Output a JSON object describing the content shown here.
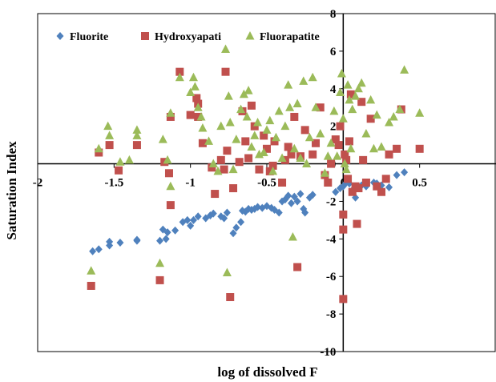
{
  "chart_data": {
    "type": "scatter",
    "xlabel": "log of dissolved F",
    "ylabel": "Saturation Index",
    "xlim": [
      -2,
      1
    ],
    "ylim": [
      -10,
      8
    ],
    "x_ticks": [
      -2,
      -1.5,
      -1,
      -0.5,
      0,
      0.5
    ],
    "x_tick_labels": [
      "-2",
      "-1.5",
      "-1",
      "-0.5",
      "0",
      "0.5"
    ],
    "y_ticks": [
      -10,
      -8,
      -6,
      -4,
      -2,
      0,
      2,
      4,
      6,
      8
    ],
    "y_tick_labels": [
      "-10",
      "-8",
      "-6",
      "-4",
      "-2",
      "0",
      "2",
      "4",
      "6",
      "8"
    ],
    "grid": false,
    "legend_position": "top-left",
    "series": [
      {
        "name": "Fluorite",
        "marker": "diamond",
        "color": "#4f81bd",
        "points": [
          [
            -1.64,
            -4.66
          ],
          [
            -1.6,
            -4.55
          ],
          [
            -1.53,
            -4.35
          ],
          [
            -1.53,
            -4.15
          ],
          [
            -1.46,
            -4.2
          ],
          [
            -1.35,
            -4.1
          ],
          [
            -1.35,
            -4.05
          ],
          [
            -1.2,
            -4.1
          ],
          [
            -1.16,
            -4.0
          ],
          [
            -1.18,
            -3.5
          ],
          [
            -1.15,
            -3.65
          ],
          [
            -1.1,
            -3.55
          ],
          [
            -1.05,
            -3.1
          ],
          [
            -1.02,
            -3.0
          ],
          [
            -1.0,
            -3.3
          ],
          [
            -0.98,
            -3.0
          ],
          [
            -0.95,
            -2.8
          ],
          [
            -0.9,
            -2.9
          ],
          [
            -0.87,
            -2.75
          ],
          [
            -0.85,
            -2.65
          ],
          [
            -0.8,
            -2.8
          ],
          [
            -0.78,
            -2.9
          ],
          [
            -0.76,
            -2.6
          ],
          [
            -0.72,
            -3.7
          ],
          [
            -0.7,
            -3.4
          ],
          [
            -0.67,
            -3.1
          ],
          [
            -0.66,
            -2.5
          ],
          [
            -0.64,
            -2.55
          ],
          [
            -0.62,
            -2.4
          ],
          [
            -0.6,
            -2.45
          ],
          [
            -0.58,
            -2.4
          ],
          [
            -0.56,
            -2.3
          ],
          [
            -0.53,
            -2.35
          ],
          [
            -0.5,
            -2.25
          ],
          [
            -0.47,
            -2.35
          ],
          [
            -0.45,
            -2.45
          ],
          [
            -0.42,
            -2.6
          ],
          [
            -0.4,
            -2.0
          ],
          [
            -0.38,
            -1.9
          ],
          [
            -0.36,
            -1.7
          ],
          [
            -0.34,
            -2.1
          ],
          [
            -0.32,
            -1.75
          ],
          [
            -0.3,
            -2.0
          ],
          [
            -0.28,
            -1.6
          ],
          [
            -0.26,
            -2.4
          ],
          [
            -0.25,
            -2.6
          ],
          [
            -0.22,
            -1.8
          ],
          [
            -0.2,
            -1.65
          ],
          [
            -0.05,
            -1.5
          ],
          [
            -0.02,
            -1.3
          ],
          [
            0.0,
            -1.2
          ],
          [
            0.02,
            -1.0
          ],
          [
            0.04,
            -1.05
          ],
          [
            0.06,
            -1.4
          ],
          [
            0.08,
            -1.8
          ],
          [
            0.1,
            -1.3
          ],
          [
            0.12,
            -1.15
          ],
          [
            0.15,
            -1.2
          ],
          [
            0.2,
            -1.0
          ],
          [
            0.22,
            -1.05
          ],
          [
            0.25,
            -1.15
          ],
          [
            0.3,
            -1.25
          ],
          [
            0.35,
            -0.6
          ],
          [
            0.4,
            -0.45
          ]
        ]
      },
      {
        "name": "Hydroxyapati",
        "marker": "square",
        "color": "#c0504d",
        "points": [
          [
            -1.65,
            -6.5
          ],
          [
            -1.6,
            0.6
          ],
          [
            -1.53,
            1.0
          ],
          [
            -1.47,
            -0.35
          ],
          [
            -1.35,
            1.0
          ],
          [
            -1.2,
            -6.2
          ],
          [
            -1.17,
            0.1
          ],
          [
            -1.14,
            -0.5
          ],
          [
            -1.13,
            -2.2
          ],
          [
            -1.13,
            2.5
          ],
          [
            -1.07,
            4.9
          ],
          [
            -1.0,
            2.6
          ],
          [
            -0.96,
            3.5
          ],
          [
            -0.95,
            3.2
          ],
          [
            -0.95,
            2.5
          ],
          [
            -0.92,
            1.1
          ],
          [
            -0.86,
            -0.2
          ],
          [
            -0.84,
            -1.6
          ],
          [
            -0.8,
            0.2
          ],
          [
            -0.78,
            -0.3
          ],
          [
            -0.77,
            4.9
          ],
          [
            -0.76,
            0.7
          ],
          [
            -0.74,
            -7.1
          ],
          [
            -0.72,
            -1.3
          ],
          [
            -0.68,
            0.1
          ],
          [
            -0.66,
            2.8
          ],
          [
            -0.64,
            1.2
          ],
          [
            -0.62,
            0.3
          ],
          [
            -0.6,
            3.1
          ],
          [
            -0.58,
            2.0
          ],
          [
            -0.55,
            -0.3
          ],
          [
            -0.52,
            1.5
          ],
          [
            -0.5,
            0.8
          ],
          [
            -0.48,
            -0.4
          ],
          [
            -0.46,
            -0.1
          ],
          [
            -0.45,
            1.2
          ],
          [
            -0.4,
            -1.0
          ],
          [
            -0.38,
            0.2
          ],
          [
            -0.36,
            0.9
          ],
          [
            -0.34,
            0.5
          ],
          [
            -0.32,
            2.5
          ],
          [
            -0.3,
            -5.5
          ],
          [
            -0.28,
            0.4
          ],
          [
            -0.25,
            1.8
          ],
          [
            -0.2,
            0.5
          ],
          [
            -0.18,
            1.1
          ],
          [
            -0.15,
            3.0
          ],
          [
            -0.12,
            -0.6
          ],
          [
            -0.1,
            -1.0
          ],
          [
            -0.08,
            0.0
          ],
          [
            -0.05,
            1.3
          ],
          [
            -0.03,
            1.0
          ],
          [
            -0.02,
            2.0
          ],
          [
            0.0,
            -2.7
          ],
          [
            0.0,
            -3.5
          ],
          [
            0.0,
            -7.2
          ],
          [
            0.01,
            0.5
          ],
          [
            0.02,
            0.2
          ],
          [
            0.03,
            -0.8
          ],
          [
            0.04,
            1.2
          ],
          [
            0.05,
            3.7
          ],
          [
            0.06,
            -1.5
          ],
          [
            0.08,
            -1.2
          ],
          [
            0.09,
            -3.2
          ],
          [
            0.1,
            -1.3
          ],
          [
            0.12,
            3.3
          ],
          [
            0.13,
            0.2
          ],
          [
            0.15,
            -1.0
          ],
          [
            0.18,
            2.4
          ],
          [
            0.22,
            -1.2
          ],
          [
            0.25,
            -1.5
          ],
          [
            0.28,
            -0.8
          ],
          [
            0.3,
            0.5
          ],
          [
            0.35,
            0.8
          ],
          [
            0.38,
            2.9
          ],
          [
            0.5,
            0.8
          ]
        ]
      },
      {
        "name": "Fluorapatite",
        "marker": "triangle",
        "color": "#9bbb59",
        "points": [
          [
            -1.65,
            -5.7
          ],
          [
            -1.6,
            0.8
          ],
          [
            -1.54,
            2.0
          ],
          [
            -1.53,
            1.5
          ],
          [
            -1.46,
            0.1
          ],
          [
            -1.4,
            0.2
          ],
          [
            -1.35,
            1.8
          ],
          [
            -1.35,
            1.5
          ],
          [
            -1.2,
            -5.3
          ],
          [
            -1.18,
            1.3
          ],
          [
            -1.15,
            0.2
          ],
          [
            -1.13,
            -1.2
          ],
          [
            -1.13,
            2.7
          ],
          [
            -1.07,
            4.6
          ],
          [
            -1.0,
            3.8
          ],
          [
            -0.98,
            4.6
          ],
          [
            -0.97,
            4.1
          ],
          [
            -0.95,
            3.0
          ],
          [
            -0.93,
            2.5
          ],
          [
            -0.92,
            1.9
          ],
          [
            -0.88,
            1.2
          ],
          [
            -0.85,
            0.0
          ],
          [
            -0.82,
            -0.4
          ],
          [
            -0.8,
            2.0
          ],
          [
            -0.77,
            6.1
          ],
          [
            -0.76,
            -5.8
          ],
          [
            -0.75,
            3.6
          ],
          [
            -0.74,
            2.2
          ],
          [
            -0.72,
            -0.3
          ],
          [
            -0.7,
            1.3
          ],
          [
            -0.67,
            2.9
          ],
          [
            -0.65,
            3.7
          ],
          [
            -0.63,
            2.5
          ],
          [
            -0.62,
            3.9
          ],
          [
            -0.6,
            0.9
          ],
          [
            -0.58,
            1.5
          ],
          [
            -0.56,
            2.2
          ],
          [
            -0.55,
            0.5
          ],
          [
            -0.52,
            0.6
          ],
          [
            -0.5,
            1.8
          ],
          [
            -0.48,
            2.3
          ],
          [
            -0.46,
            -0.4
          ],
          [
            -0.44,
            1.4
          ],
          [
            -0.42,
            2.8
          ],
          [
            -0.4,
            0.3
          ],
          [
            -0.38,
            2.0
          ],
          [
            -0.36,
            4.2
          ],
          [
            -0.35,
            3.0
          ],
          [
            -0.33,
            -3.9
          ],
          [
            -0.32,
            0.8
          ],
          [
            -0.3,
            3.2
          ],
          [
            -0.28,
            0.3
          ],
          [
            -0.26,
            4.4
          ],
          [
            -0.24,
            0.0
          ],
          [
            -0.22,
            1.4
          ],
          [
            -0.2,
            4.6
          ],
          [
            -0.18,
            3.0
          ],
          [
            -0.15,
            1.6
          ],
          [
            -0.12,
            -0.5
          ],
          [
            -0.1,
            0.4
          ],
          [
            -0.08,
            1.1
          ],
          [
            -0.06,
            2.8
          ],
          [
            -0.04,
            0.4
          ],
          [
            -0.02,
            3.8
          ],
          [
            -0.01,
            4.8
          ],
          [
            0.0,
            2.4
          ],
          [
            0.01,
            0.0
          ],
          [
            0.02,
            -0.3
          ],
          [
            0.03,
            4.2
          ],
          [
            0.04,
            3.4
          ],
          [
            0.05,
            0.8
          ],
          [
            0.06,
            2.9
          ],
          [
            0.08,
            3.6
          ],
          [
            0.1,
            4.0
          ],
          [
            0.12,
            4.3
          ],
          [
            0.15,
            1.6
          ],
          [
            0.18,
            3.4
          ],
          [
            0.2,
            0.8
          ],
          [
            0.22,
            2.6
          ],
          [
            0.25,
            0.9
          ],
          [
            0.3,
            2.2
          ],
          [
            0.33,
            2.5
          ],
          [
            0.37,
            2.9
          ],
          [
            0.4,
            5.0
          ],
          [
            0.5,
            2.7
          ]
        ]
      }
    ]
  }
}
